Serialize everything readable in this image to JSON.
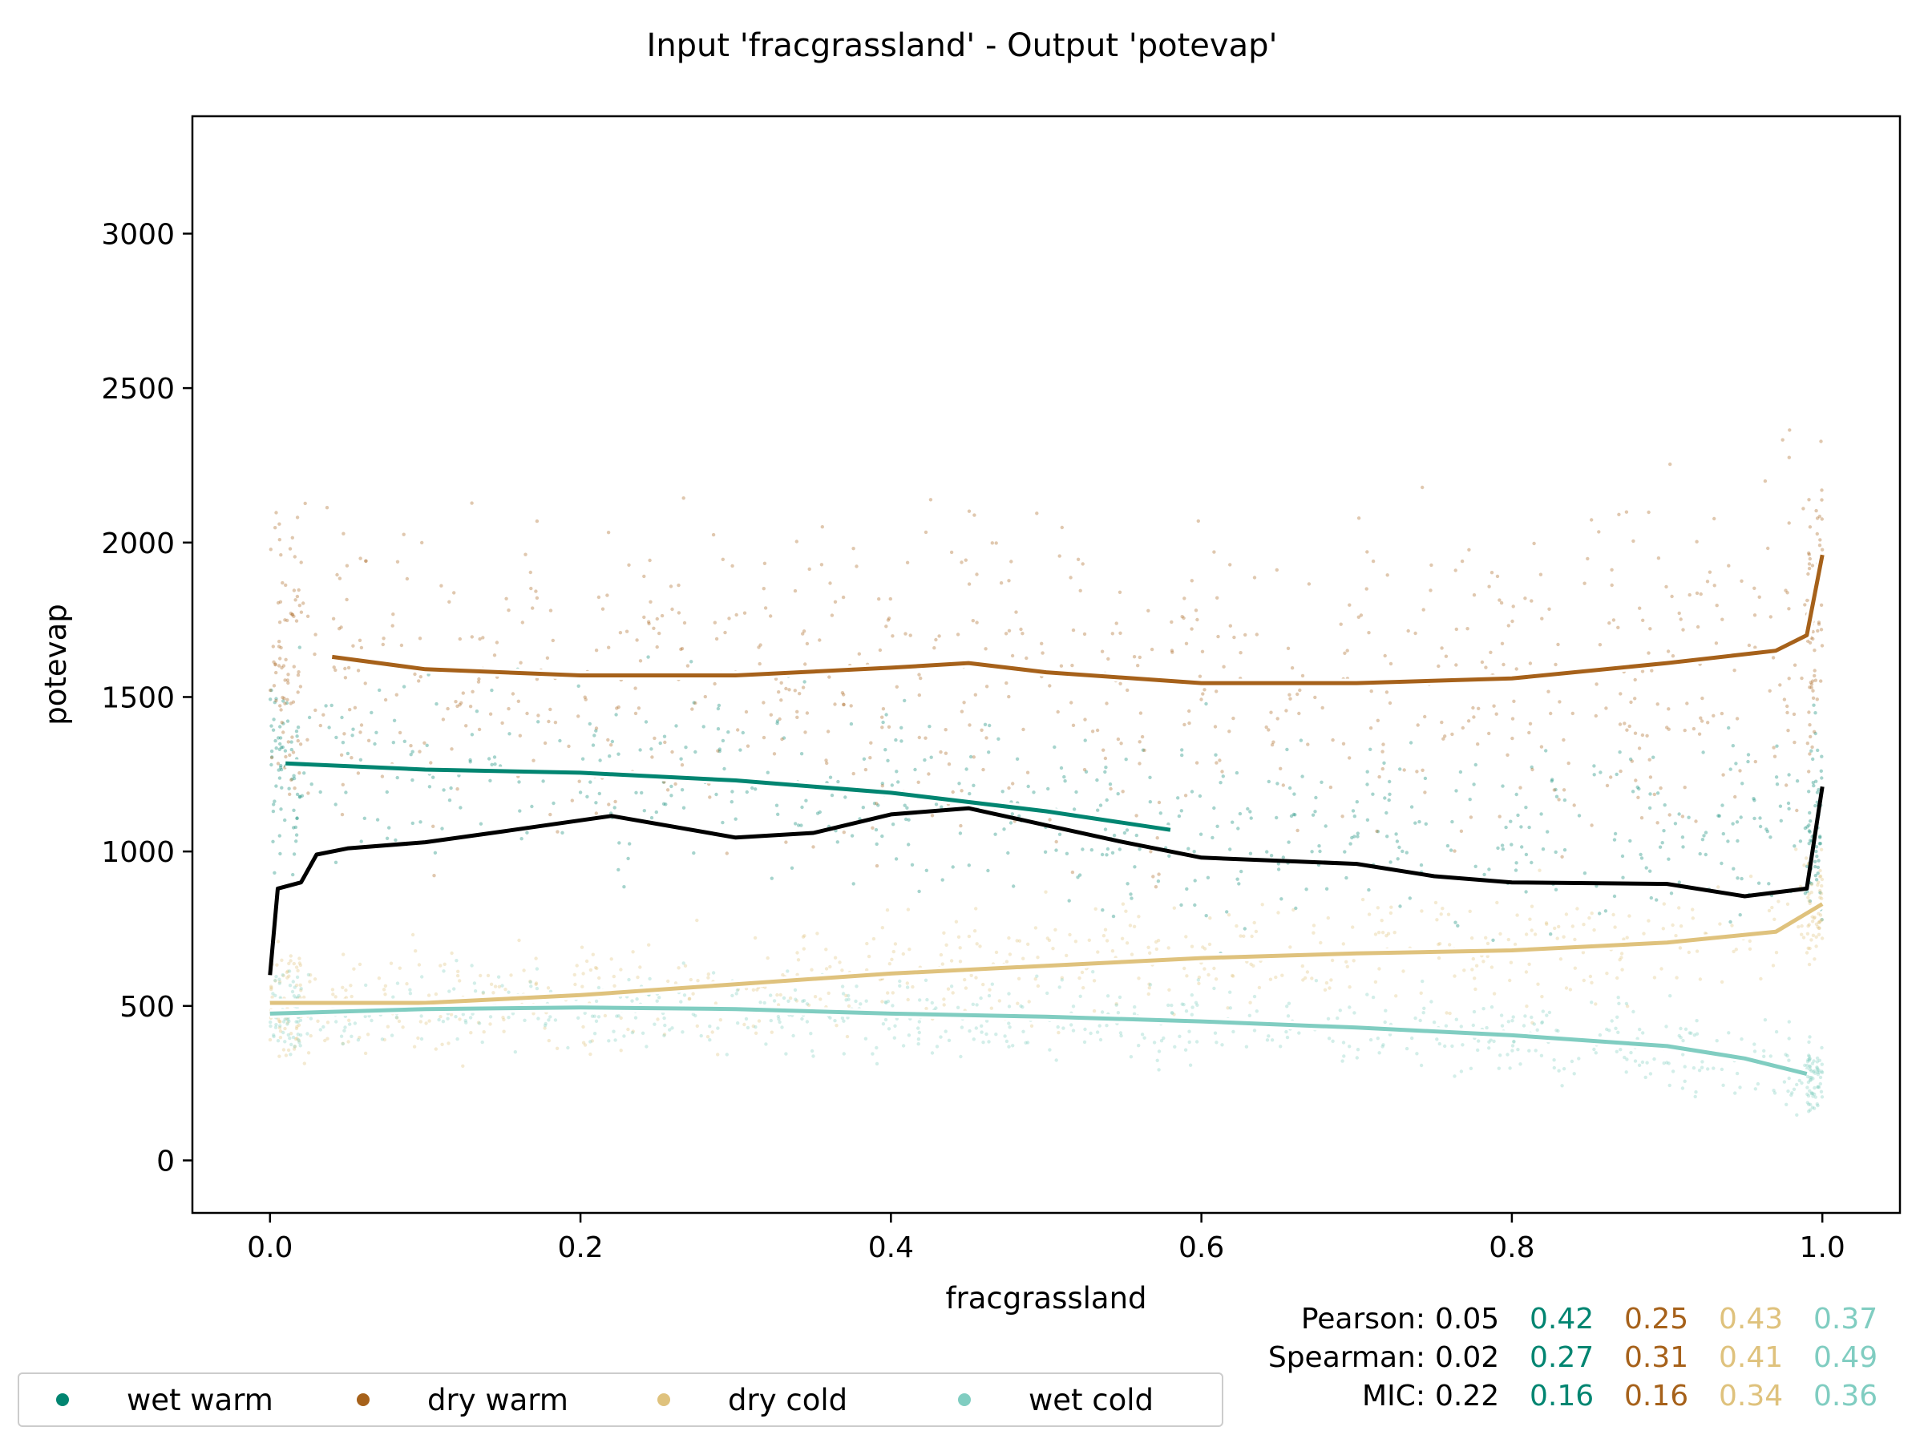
{
  "chart_data": {
    "type": "scatter",
    "title": "Input 'fracgrassland' - Output 'potevap'",
    "xlabel": "fracgrassland",
    "ylabel": "potevap",
    "xlim": [
      -0.05,
      1.05
    ],
    "ylim": [
      -170,
      3380
    ],
    "xticks": [
      0.0,
      0.2,
      0.4,
      0.6,
      0.8,
      1.0
    ],
    "xtick_labels": [
      "0.0",
      "0.2",
      "0.4",
      "0.6",
      "0.8",
      "1.0"
    ],
    "yticks": [
      0,
      500,
      1000,
      1500,
      2000,
      2500,
      3000
    ],
    "ytick_labels": [
      "0",
      "500",
      "1000",
      "1500",
      "2000",
      "2500",
      "3000"
    ],
    "grid": false,
    "legend_position": "bottom",
    "series": [
      {
        "name": "wet warm",
        "color": "#018571",
        "trend": {
          "x": [
            0.01,
            0.1,
            0.2,
            0.3,
            0.4,
            0.5,
            0.58
          ],
          "y": [
            1285,
            1265,
            1255,
            1230,
            1190,
            1130,
            1070
          ]
        }
      },
      {
        "name": "dry warm",
        "color": "#a6611a",
        "trend": {
          "x": [
            0.04,
            0.1,
            0.2,
            0.3,
            0.4,
            0.45,
            0.5,
            0.6,
            0.7,
            0.8,
            0.9,
            0.97,
            0.99,
            1.0
          ],
          "y": [
            1630,
            1590,
            1570,
            1570,
            1595,
            1610,
            1580,
            1545,
            1545,
            1560,
            1610,
            1650,
            1700,
            1960
          ]
        }
      },
      {
        "name": "dry cold",
        "color": "#dfc27d",
        "trend": {
          "x": [
            0.0,
            0.1,
            0.2,
            0.3,
            0.4,
            0.5,
            0.6,
            0.7,
            0.8,
            0.9,
            0.97,
            1.0
          ],
          "y": [
            510,
            510,
            535,
            570,
            605,
            630,
            655,
            670,
            680,
            705,
            740,
            830
          ]
        }
      },
      {
        "name": "wet cold",
        "color": "#80cdc1",
        "trend": {
          "x": [
            0.0,
            0.1,
            0.2,
            0.3,
            0.4,
            0.5,
            0.6,
            0.7,
            0.8,
            0.9,
            0.95,
            0.99
          ],
          "y": [
            475,
            490,
            495,
            490,
            475,
            465,
            450,
            430,
            405,
            370,
            330,
            280
          ]
        }
      }
    ],
    "overall_trend": {
      "color": "#000000",
      "x": [
        0.0,
        0.005,
        0.02,
        0.03,
        0.05,
        0.1,
        0.15,
        0.22,
        0.3,
        0.35,
        0.4,
        0.45,
        0.5,
        0.55,
        0.6,
        0.7,
        0.75,
        0.8,
        0.9,
        0.95,
        0.99,
        1.0
      ],
      "y": [
        600,
        880,
        900,
        990,
        1010,
        1030,
        1065,
        1115,
        1045,
        1060,
        1120,
        1140,
        1085,
        1030,
        980,
        960,
        920,
        900,
        895,
        855,
        880,
        1210
      ]
    }
  },
  "stats": {
    "rows": [
      {
        "label": "Pearson:",
        "values": [
          "0.05",
          "0.42",
          "0.25",
          "0.43",
          "0.37"
        ]
      },
      {
        "label": "Spearman:",
        "values": [
          "0.02",
          "0.27",
          "0.31",
          "0.41",
          "0.49"
        ]
      },
      {
        "label": "MIC:",
        "values": [
          "0.22",
          "0.16",
          "0.16",
          "0.34",
          "0.36"
        ]
      }
    ],
    "colors": [
      "#000000",
      "#018571",
      "#a6611a",
      "#dfc27d",
      "#80cdc1"
    ]
  },
  "legend": {
    "items": [
      {
        "label": "wet warm",
        "color": "#018571"
      },
      {
        "label": "dry warm",
        "color": "#a6611a"
      },
      {
        "label": "dry cold",
        "color": "#dfc27d"
      },
      {
        "label": "wet cold",
        "color": "#80cdc1"
      }
    ]
  }
}
